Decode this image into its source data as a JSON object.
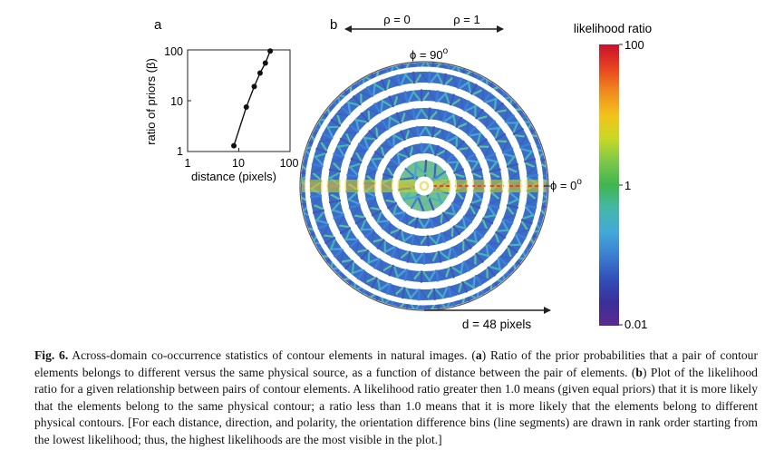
{
  "panel_a": {
    "label": "a",
    "xlabel": "distance (pixels)",
    "ylabel": "ratio of priors (β)",
    "x_ticks": [
      "1",
      "10",
      "100"
    ],
    "y_ticks": [
      "1",
      "10",
      "100"
    ]
  },
  "panel_b": {
    "label": "b",
    "rho0_label": "ρ = 0",
    "rho1_label": "ρ = 1",
    "phi90_label": "ϕ = 90",
    "phi90_sup": "o",
    "phi0_label": "ϕ = 0",
    "phi0_sup": "o",
    "distance_label": "d = 48 pixels"
  },
  "colorbar": {
    "title": "likelihood ratio",
    "tick_labels": [
      "100",
      "1",
      "0.01"
    ],
    "colors": [
      "#c8102e",
      "#e8421f",
      "#f08a1e",
      "#f3c21a",
      "#c9d925",
      "#7cc84a",
      "#3fb64f",
      "#46b7a8",
      "#42a9d9",
      "#3b7fd0",
      "#3150b8",
      "#3a2f9a",
      "#5a2a8e"
    ]
  },
  "chart_data": {
    "type": "line",
    "title": "",
    "xlabel": "distance (pixels)",
    "ylabel": "ratio of priors (β)",
    "xscale": "log",
    "yscale": "log",
    "xlim": [
      1,
      100
    ],
    "ylim": [
      1,
      100
    ],
    "x": [
      8,
      14,
      20,
      26,
      33,
      41
    ],
    "y": [
      1.3,
      7.5,
      19,
      35,
      55,
      95
    ]
  },
  "caption": {
    "fig_label": "Fig. 6.",
    "part1": " Across-domain co-occurrence statistics of contour elements in natural images. (",
    "a_letter": "a",
    "part2": ") Ratio of the prior probabilities that a pair of contour elements belongs to different versus the same physical source, as a function of distance between the pair of elements. (",
    "b_letter": "b",
    "part3": ") Plot of the likelihood ratio for a given relationship between pairs of contour elements. A likelihood ratio greater then 1.0 means (given equal priors) that it is more likely that the elements belong to the same physical contour; a ratio less than 1.0 means that it is more likely that the elements belong to different physical contours. [For each distance, direction, and polarity, the orientation difference bins (line segments) are drawn in rank order starting from the lowest likelihood; thus, the highest likelihoods are the most visible in the plot.]"
  }
}
